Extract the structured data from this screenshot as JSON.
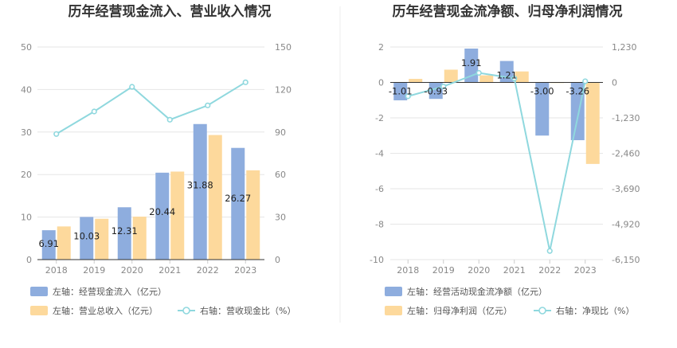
{
  "chart_data": [
    {
      "type": "bar",
      "title": "历年经营现金流入、营业收入情况",
      "categories": [
        "2018",
        "2019",
        "2020",
        "2021",
        "2022",
        "2023"
      ],
      "y_left": {
        "ylim": [
          0,
          50
        ],
        "ticks": [
          "0",
          "10",
          "20",
          "30",
          "40",
          "50"
        ]
      },
      "y_right": {
        "ylim": [
          0,
          150
        ],
        "ticks": [
          "0",
          "30",
          "60",
          "90",
          "120",
          "150"
        ]
      },
      "series": [
        {
          "name": "左轴：经营现金流入（亿元）",
          "type": "bar",
          "axis": "left",
          "color": "#8eadde",
          "values": [
            6.91,
            10.03,
            12.31,
            20.44,
            31.88,
            26.27
          ],
          "labels": [
            "6.91",
            "10.03",
            "12.31",
            "20.44",
            "31.88",
            "26.27"
          ]
        },
        {
          "name": "左轴：营业总收入（亿元）",
          "type": "bar",
          "axis": "left",
          "color": "#fdd99c",
          "values": [
            7.8,
            9.6,
            10.1,
            20.7,
            29.3,
            21.0
          ]
        },
        {
          "name": "右轴：营收现金比（%）",
          "type": "line",
          "axis": "right",
          "color": "#8fd8de",
          "values": [
            88.6,
            104.5,
            121.9,
            98.7,
            108.8,
            125.1
          ]
        }
      ],
      "legend": {
        "placement": "bottom-left"
      },
      "grid": true
    },
    {
      "type": "bar",
      "title": "历年经营现金流净额、归母净利润情况",
      "categories": [
        "2018",
        "2019",
        "2020",
        "2021",
        "2022",
        "2023"
      ],
      "y_left": {
        "ylim": [
          -10,
          2
        ],
        "ticks": [
          "-10",
          "-8",
          "-6",
          "-4",
          "-2",
          "0",
          "2"
        ]
      },
      "y_right": {
        "ylim": [
          -6150,
          1230
        ],
        "ticks": [
          "-6,150",
          "-4,920",
          "-3,690",
          "-2,460",
          "-1,230",
          "0",
          "1,230"
        ]
      },
      "series": [
        {
          "name": "左轴：经营活动现金流净额（亿元）",
          "type": "bar",
          "axis": "left",
          "color": "#8eadde",
          "values": [
            -1.01,
            -0.93,
            1.91,
            1.21,
            -3.0,
            -3.26
          ],
          "labels": [
            "-1.01",
            "-0.93",
            "1.91",
            "1.21",
            "-3.00",
            "-3.26"
          ]
        },
        {
          "name": "左轴：归母净利润（亿元）",
          "type": "bar",
          "axis": "left",
          "color": "#fdd99c",
          "values": [
            0.2,
            0.72,
            0.4,
            0.62,
            -0.02,
            -4.6
          ]
        },
        {
          "name": "右轴：净现比（%）",
          "type": "line",
          "axis": "right",
          "color": "#8fd8de",
          "values": [
            -480,
            -140,
            330,
            140,
            -5850,
            40
          ]
        }
      ],
      "legend": {
        "placement": "bottom-left"
      },
      "grid": true
    }
  ]
}
